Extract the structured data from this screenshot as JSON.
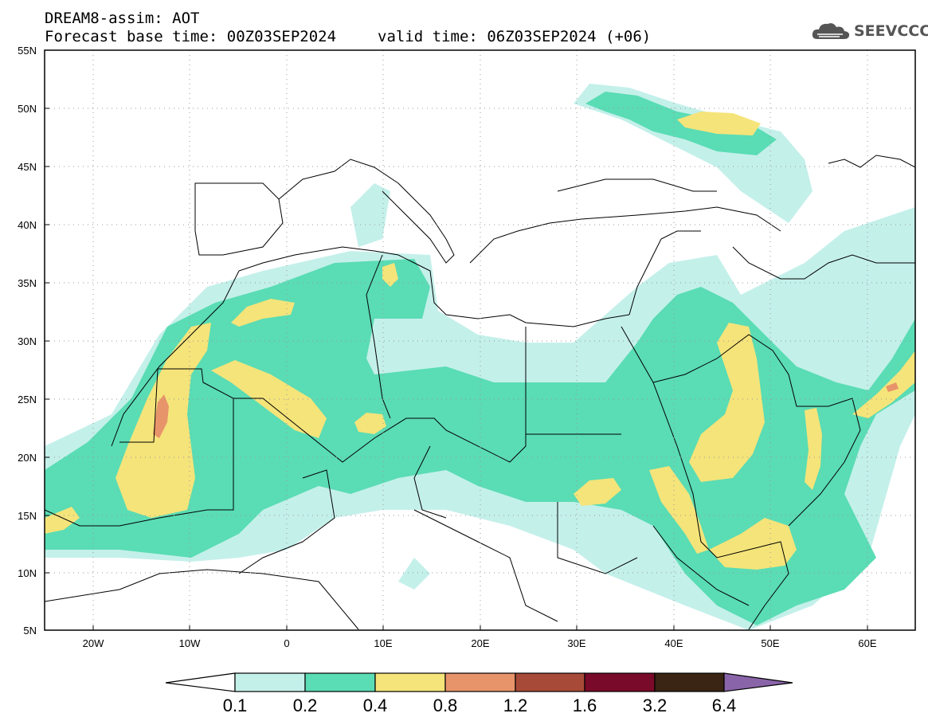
{
  "header": {
    "line1": "DREAM8-assim: AOT",
    "base_time": "Forecast base time: 00Z03SEP2024",
    "valid_time": "valid time: 06Z03SEP2024 (+06)"
  },
  "logo": {
    "text": "SEEVCCC",
    "icon": "cloud-icon"
  },
  "map": {
    "projection": "lat-lon",
    "lon_range": [
      -25,
      65
    ],
    "lat_range": [
      5,
      55
    ],
    "lat_labels": [
      "55N",
      "50N",
      "45N",
      "40N",
      "35N",
      "30N",
      "25N",
      "20N",
      "15N",
      "10N",
      "5N"
    ],
    "lon_labels": [
      "20W",
      "10W",
      "0",
      "10E",
      "20E",
      "30E",
      "40E",
      "50E",
      "60E"
    ],
    "grid": "dotted"
  },
  "colorbar": {
    "labels": [
      "0.1",
      "0.2",
      "0.4",
      "0.8",
      "1.2",
      "1.6",
      "3.2",
      "6.4"
    ],
    "colors": [
      "#ffffff",
      "#c4f0ea",
      "#5adcb4",
      "#f5e47a",
      "#e8946a",
      "#a84a38",
      "#7a0a2a",
      "#3a2414",
      "#8a64a8"
    ]
  }
}
